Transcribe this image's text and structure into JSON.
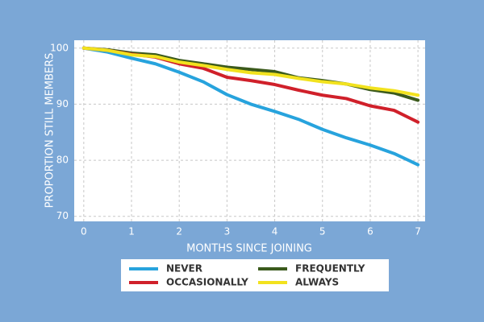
{
  "chart_data": {
    "type": "line",
    "x_label": "MONTHS SINCE JOINING",
    "y_label": "PROPORTION STILL MEMBERS",
    "x": [
      0,
      0.5,
      1,
      1.5,
      2,
      2.5,
      3,
      3.5,
      4,
      4.5,
      5,
      5.5,
      6,
      6.5,
      7
    ],
    "series": [
      {
        "name": "NEVER",
        "color": "#27a3dd",
        "values": [
          100,
          99.3,
          98.2,
          97.2,
          95.7,
          94.0,
          91.7,
          90.0,
          88.7,
          87.3,
          85.5,
          84.0,
          82.7,
          81.2,
          79.2
        ]
      },
      {
        "name": "FREQUENTLY",
        "color": "#3b5a1c",
        "values": [
          100,
          99.7,
          99.1,
          98.8,
          97.8,
          97.2,
          96.6,
          96.2,
          95.8,
          94.7,
          94.2,
          93.6,
          92.6,
          92.0,
          90.7
        ]
      },
      {
        "name": "OCCASIONALLY",
        "color": "#d0202a",
        "values": [
          100,
          99.6,
          98.9,
          98.4,
          97.2,
          96.4,
          94.8,
          94.2,
          93.5,
          92.5,
          91.6,
          91.0,
          89.7,
          88.9,
          86.8
        ]
      },
      {
        "name": "ALWAYS",
        "color": "#f2e21e",
        "values": [
          100,
          99.6,
          98.8,
          98.5,
          97.5,
          96.9,
          96.2,
          95.6,
          95.3,
          94.6,
          94.0,
          93.6,
          92.9,
          92.4,
          91.6
        ]
      }
    ],
    "xlim": [
      -0.2,
      7.15
    ],
    "ylim": [
      69.1,
      101.4
    ],
    "xticks": [
      0,
      1,
      2,
      3,
      4,
      5,
      6,
      7
    ],
    "yticks": [
      70,
      80,
      90,
      100
    ],
    "grid": true
  }
}
